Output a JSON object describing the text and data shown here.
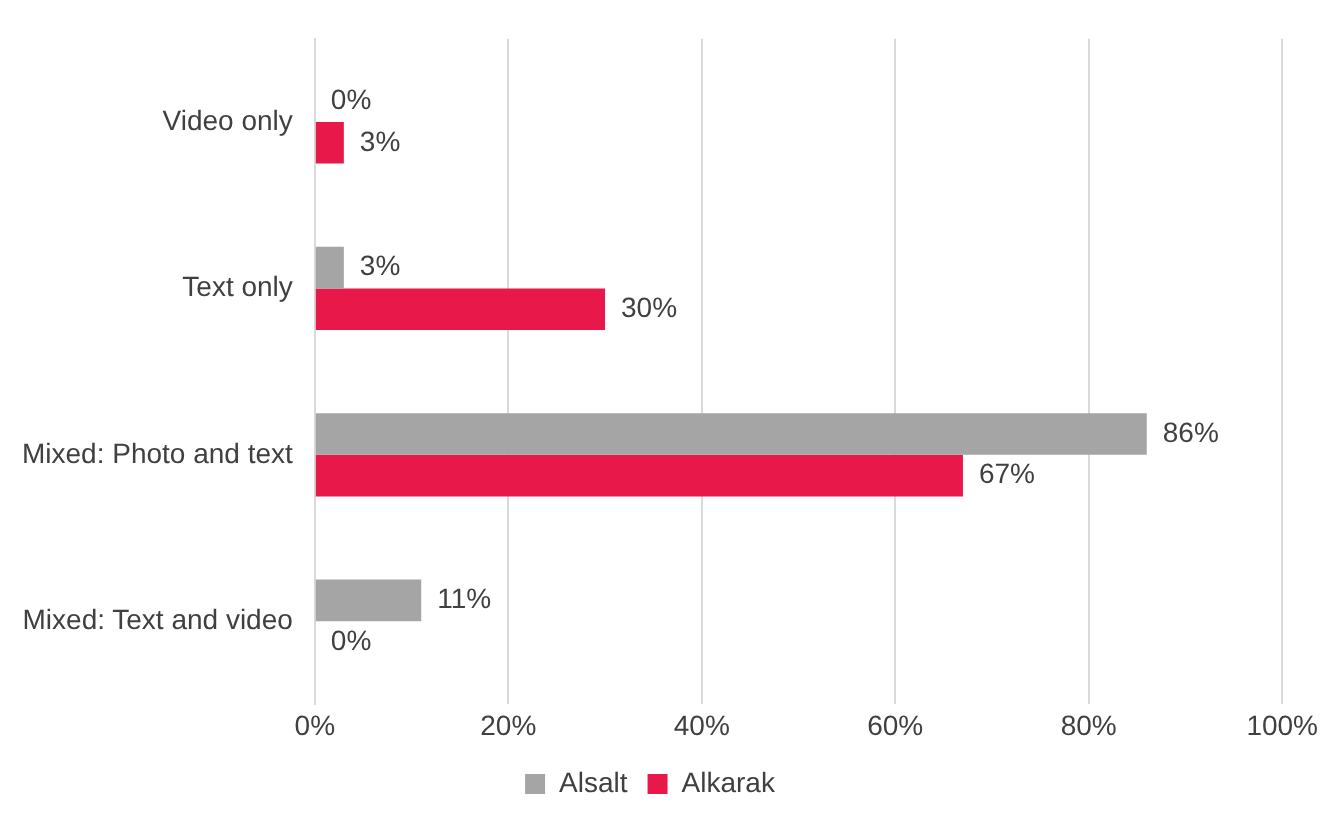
{
  "chart_data": {
    "type": "bar",
    "orientation": "horizontal",
    "categories": [
      "Video only",
      "Text only",
      "Mixed: Photo and text",
      "Mixed: Text and video"
    ],
    "series": [
      {
        "name": "Alsalt",
        "color": "#a5a5a5",
        "values": [
          0,
          3,
          86,
          11
        ],
        "value_labels": [
          "0%",
          "3%",
          "86%",
          "11%"
        ]
      },
      {
        "name": "Alkarak",
        "color": "#e8194a",
        "values": [
          3,
          30,
          67,
          0
        ],
        "value_labels": [
          "3%",
          "30%",
          "67%",
          "0%"
        ]
      }
    ],
    "xlim": [
      0,
      100
    ],
    "xticks": [
      {
        "value": 0,
        "label": "0%"
      },
      {
        "value": 20,
        "label": "20%"
      },
      {
        "value": 40,
        "label": "40%"
      },
      {
        "value": 60,
        "label": "60%"
      },
      {
        "value": 80,
        "label": "80%"
      },
      {
        "value": 100,
        "label": "100%"
      }
    ],
    "grid": "x",
    "legend": "bottom"
  }
}
